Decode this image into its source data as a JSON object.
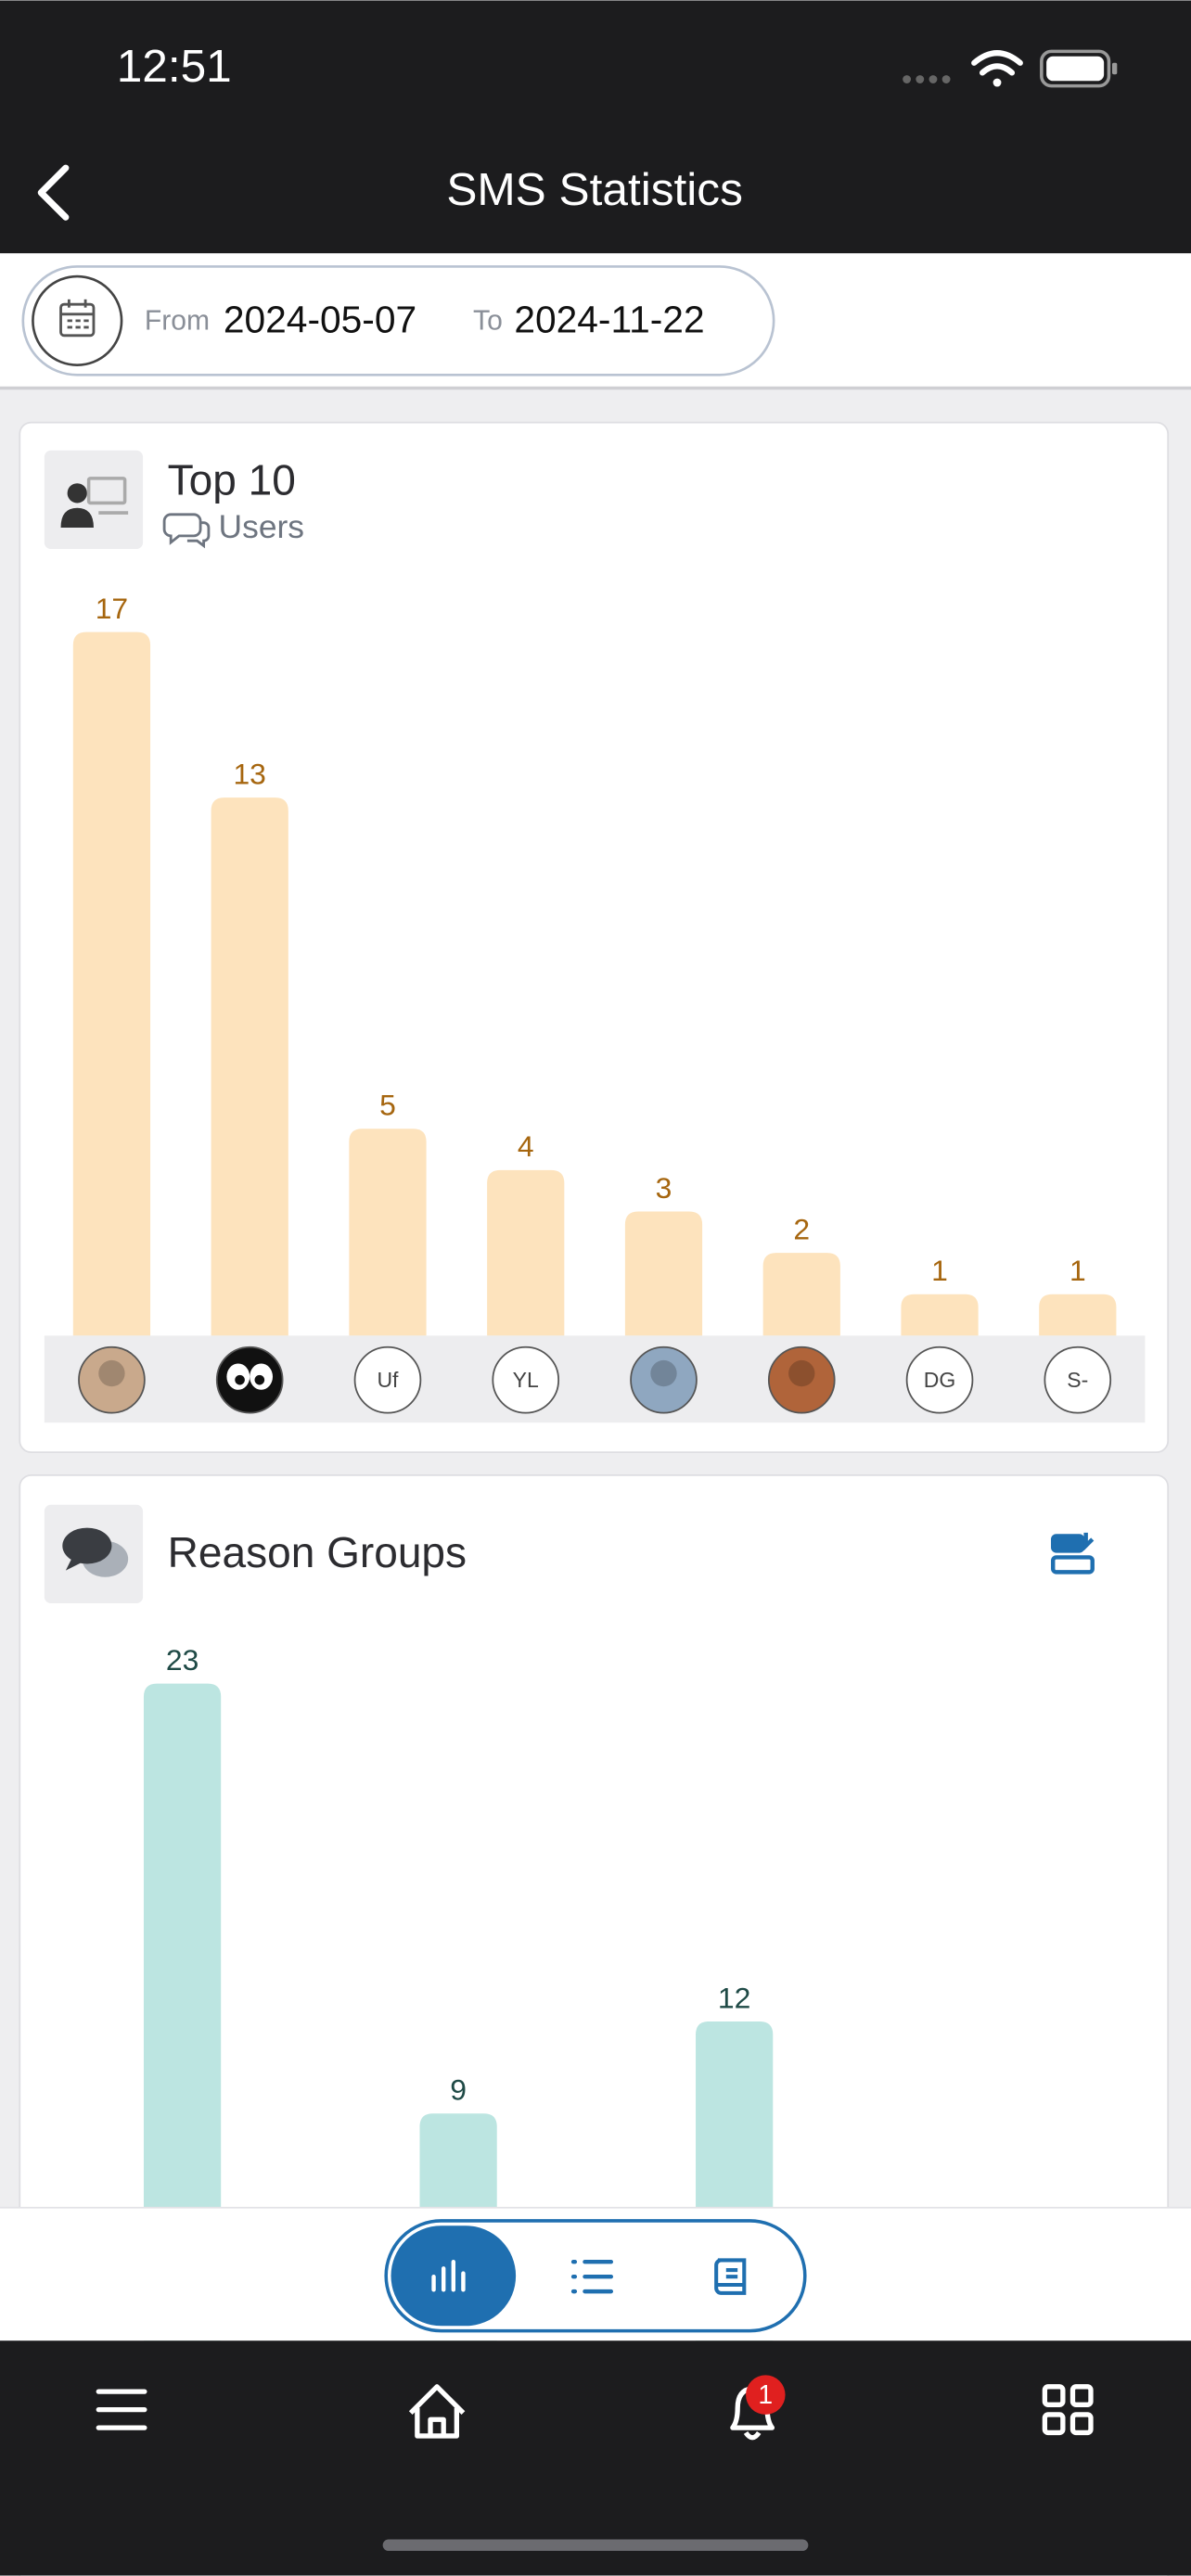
{
  "status_bar": {
    "time": "12:51"
  },
  "header": {
    "title": "SMS Statistics"
  },
  "date_range": {
    "from_label": "From",
    "from": "2024-05-07",
    "to_label": "To",
    "to": "2024-11-22"
  },
  "chart_data": [
    {
      "type": "bar",
      "title": "Top 10",
      "subtitle": "Users",
      "categories": [
        null,
        null,
        "Uf",
        "YL",
        null,
        null,
        "DG",
        "S-"
      ],
      "values": [
        17,
        13,
        5,
        4,
        3,
        2,
        1,
        1
      ],
      "color": "#fde3bd",
      "label_color": "#a6660f"
    },
    {
      "type": "bar",
      "title": "Reason Groups",
      "categories": [
        null,
        null,
        null
      ],
      "values": [
        23,
        9,
        12
      ],
      "color": "#bce5e1",
      "label_color": "#1f4a46"
    }
  ],
  "bottom_nav": {
    "badge": "1"
  }
}
